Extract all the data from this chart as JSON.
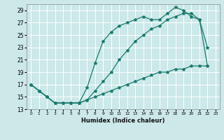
{
  "xlabel": "Humidex (Indice chaleur)",
  "xlim": [
    -0.5,
    23.5
  ],
  "ylim": [
    13,
    30
  ],
  "xticks": [
    0,
    1,
    2,
    3,
    4,
    5,
    6,
    7,
    8,
    9,
    10,
    11,
    12,
    13,
    14,
    15,
    16,
    17,
    18,
    19,
    20,
    21,
    22,
    23
  ],
  "yticks": [
    13,
    15,
    17,
    19,
    21,
    23,
    25,
    27,
    29
  ],
  "line_color": "#1a7a6e",
  "bg_color": "#cce8e8",
  "grid_color": "#ffffff",
  "series": [
    {
      "x": [
        0,
        1,
        2,
        3,
        4,
        5,
        6,
        7,
        8,
        9,
        10,
        11,
        12,
        13,
        14,
        15,
        16,
        17,
        18,
        19,
        20,
        21,
        22
      ],
      "y": [
        17,
        16,
        15,
        14,
        14,
        14,
        14,
        16.5,
        20.5,
        24,
        25.5,
        26.5,
        27,
        27.5,
        28,
        27.5,
        27.5,
        28.5,
        29.5,
        29,
        28,
        27.5,
        23
      ]
    },
    {
      "x": [
        0,
        1,
        2,
        3,
        4,
        5,
        6,
        7,
        8,
        9,
        10,
        11,
        12,
        13,
        14,
        15,
        16,
        17,
        18,
        19,
        20,
        21,
        22
      ],
      "y": [
        17,
        16,
        15,
        14,
        14,
        14,
        14,
        14.5,
        16,
        17.5,
        19,
        21,
        22.5,
        24,
        25,
        26,
        26.5,
        27.5,
        28,
        28.5,
        28.5,
        27.5,
        20
      ]
    },
    {
      "x": [
        0,
        1,
        2,
        3,
        4,
        5,
        6,
        7,
        8,
        9,
        10,
        11,
        12,
        13,
        14,
        15,
        16,
        17,
        18,
        19,
        20,
        21,
        22
      ],
      "y": [
        17,
        16,
        15,
        14,
        14,
        14,
        14,
        14.5,
        15,
        15.5,
        16,
        16.5,
        17,
        17.5,
        18,
        18.5,
        19,
        19,
        19.5,
        19.5,
        20,
        20,
        20
      ]
    }
  ]
}
